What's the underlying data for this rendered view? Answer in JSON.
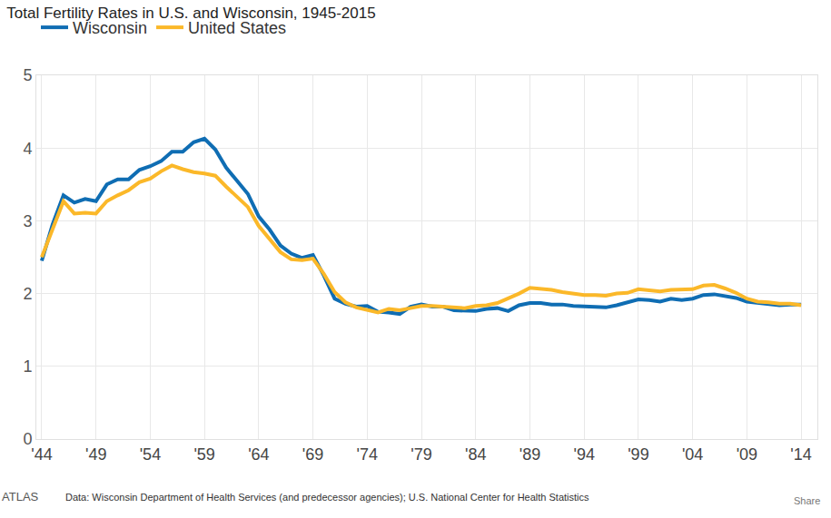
{
  "chart_data": {
    "type": "line",
    "title": "Total Fertility Rates in U.S. and Wisconsin, 1945-2015",
    "annotations": [
      "ATLAS",
      "Data: Wisconsin Department of Health Services (and predecessor agencies); U.S. National Center for Health Statistics",
      "Share"
    ],
    "x": [
      1944,
      1945,
      1946,
      1947,
      1948,
      1949,
      1950,
      1951,
      1952,
      1953,
      1954,
      1955,
      1956,
      1957,
      1958,
      1959,
      1960,
      1961,
      1962,
      1963,
      1964,
      1965,
      1966,
      1967,
      1968,
      1969,
      1970,
      1971,
      1972,
      1973,
      1974,
      1975,
      1976,
      1977,
      1978,
      1979,
      1980,
      1981,
      1982,
      1983,
      1984,
      1985,
      1986,
      1987,
      1988,
      1989,
      1990,
      1991,
      1992,
      1993,
      1994,
      1995,
      1996,
      1997,
      1998,
      1999,
      2000,
      2001,
      2002,
      2003,
      2004,
      2005,
      2006,
      2007,
      2008,
      2009,
      2010,
      2011,
      2012,
      2013,
      2014
    ],
    "series": [
      {
        "name": "Wisconsin",
        "color": "#0f6db3",
        "values": [
          2.45,
          2.95,
          3.35,
          3.25,
          3.3,
          3.27,
          3.5,
          3.57,
          3.57,
          3.7,
          3.75,
          3.82,
          3.95,
          3.95,
          4.08,
          4.13,
          3.98,
          3.73,
          3.55,
          3.37,
          3.06,
          2.88,
          2.66,
          2.55,
          2.49,
          2.53,
          2.25,
          1.93,
          1.86,
          1.82,
          1.83,
          1.75,
          1.74,
          1.72,
          1.82,
          1.85,
          1.82,
          1.82,
          1.77,
          1.76,
          1.76,
          1.79,
          1.8,
          1.76,
          1.84,
          1.87,
          1.87,
          1.85,
          1.85,
          1.83,
          1.82,
          1.82,
          1.81,
          1.84,
          1.88,
          1.92,
          1.91,
          1.89,
          1.93,
          1.91,
          1.93,
          1.98,
          1.99,
          1.97,
          1.94,
          1.89,
          1.87,
          1.86,
          1.84,
          1.85,
          1.85
        ]
      },
      {
        "name": "United States",
        "color": "#fbb829",
        "values": [
          2.5,
          2.9,
          3.27,
          3.1,
          3.11,
          3.1,
          3.27,
          3.35,
          3.42,
          3.53,
          3.58,
          3.68,
          3.76,
          3.71,
          3.67,
          3.65,
          3.62,
          3.47,
          3.33,
          3.19,
          2.93,
          2.74,
          2.57,
          2.47,
          2.46,
          2.48,
          2.27,
          2.02,
          1.88,
          1.81,
          1.77,
          1.74,
          1.79,
          1.77,
          1.8,
          1.83,
          1.83,
          1.82,
          1.81,
          1.8,
          1.83,
          1.84,
          1.87,
          1.93,
          2.0,
          2.08,
          2.07,
          2.05,
          2.02,
          2.0,
          1.98,
          1.98,
          1.97,
          2.0,
          2.01,
          2.06,
          2.04,
          2.03,
          2.05,
          2.05,
          2.06,
          2.11,
          2.12,
          2.07,
          2.01,
          1.93,
          1.89,
          1.88,
          1.86,
          1.86,
          1.84
        ]
      }
    ],
    "xlim": [
      1943.5,
      2015.5
    ],
    "xticks": [
      {
        "value": 1944,
        "label": "'44"
      },
      {
        "value": 1949,
        "label": "'49"
      },
      {
        "value": 1954,
        "label": "'54"
      },
      {
        "value": 1959,
        "label": "'59"
      },
      {
        "value": 1964,
        "label": "'64"
      },
      {
        "value": 1969,
        "label": "'69"
      },
      {
        "value": 1974,
        "label": "'74"
      },
      {
        "value": 1979,
        "label": "'79"
      },
      {
        "value": 1984,
        "label": "'84"
      },
      {
        "value": 1989,
        "label": "'89"
      },
      {
        "value": 1994,
        "label": "'94"
      },
      {
        "value": 1999,
        "label": "'99"
      },
      {
        "value": 2004,
        "label": "'04"
      },
      {
        "value": 2009,
        "label": "'09"
      },
      {
        "value": 2014,
        "label": "'14"
      }
    ],
    "ylim": [
      0,
      5
    ],
    "yticks": [
      0,
      1,
      2,
      3,
      4,
      5
    ],
    "grid": true,
    "legend": "top-left"
  }
}
